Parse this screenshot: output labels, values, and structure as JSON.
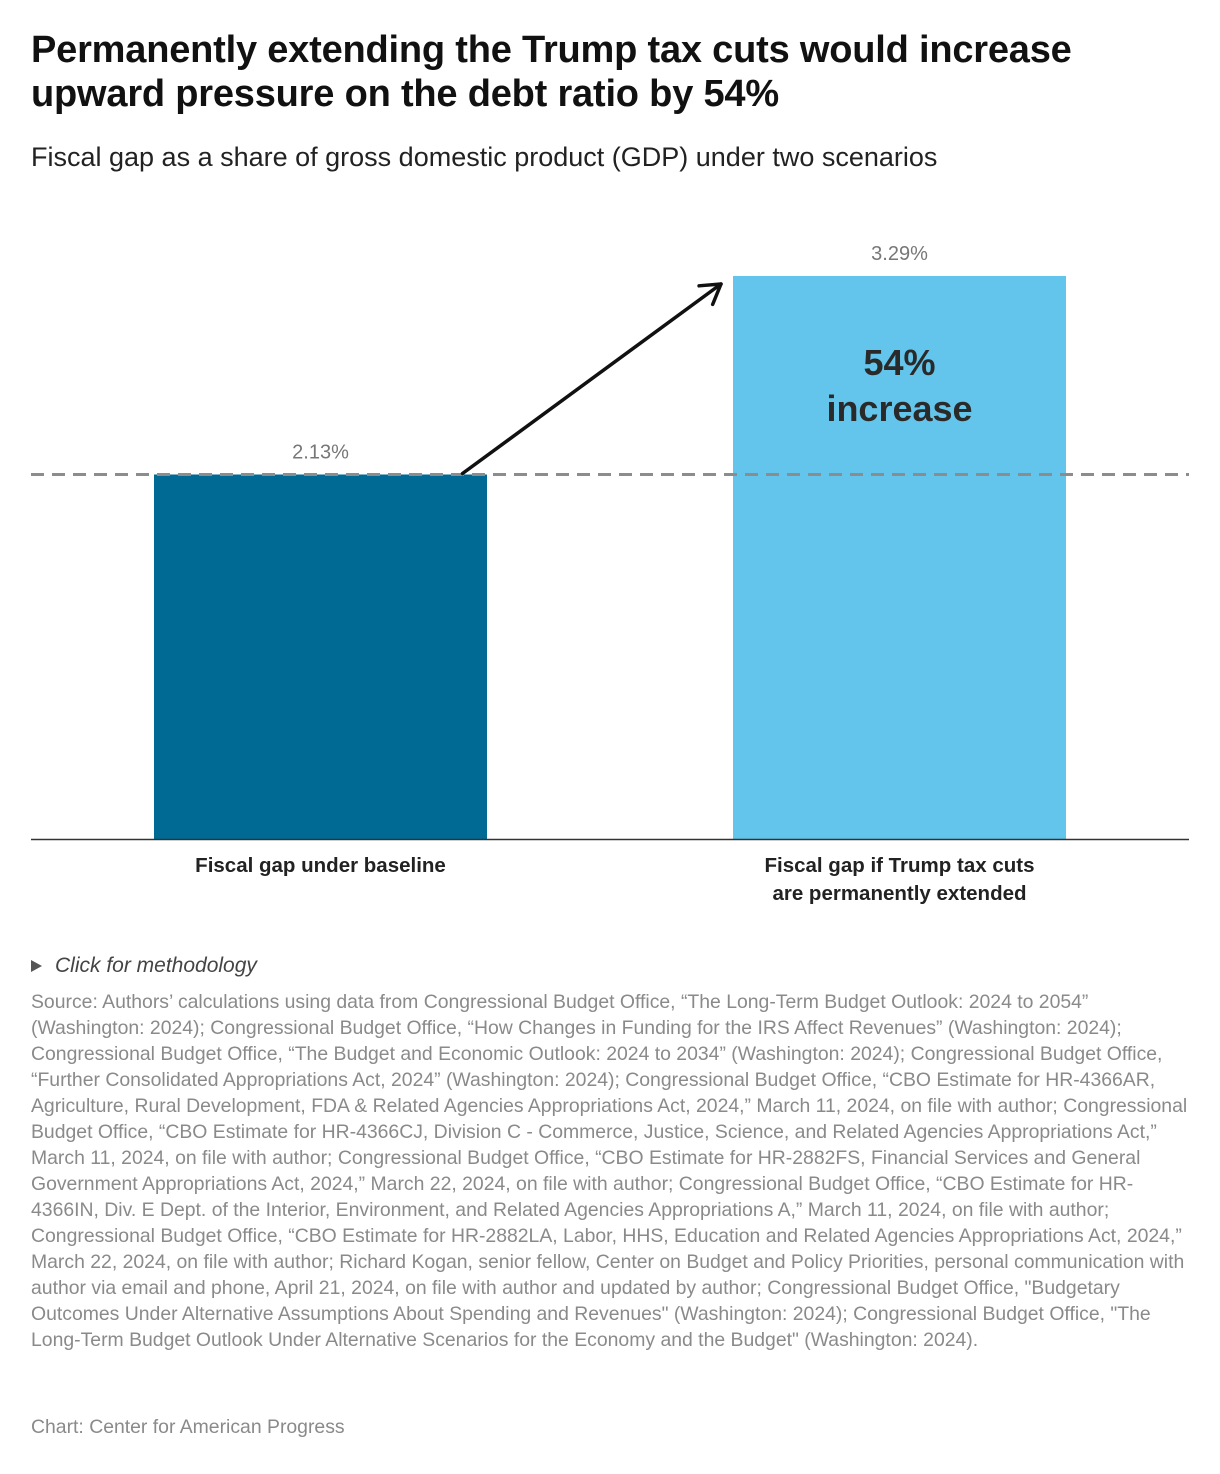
{
  "header": {
    "title": "Permanently extending the Trump tax cuts would increase upward pressure on the debt ratio by 54%",
    "subtitle": "Fiscal gap as a share of gross domestic product (GDP) under two scenarios"
  },
  "chart_data": {
    "type": "bar",
    "title": "Permanently extending the Trump tax cuts would increase upward pressure on the debt ratio by 54%",
    "subtitle": "Fiscal gap as a share of gross domestic product (GDP) under two scenarios",
    "categories": [
      "Fiscal gap under baseline",
      "Fiscal gap if Trump tax cuts are permanently extended"
    ],
    "category_label_lines": [
      [
        "Fiscal gap under baseline"
      ],
      [
        "Fiscal gap if Trump tax cuts",
        "are permanently extended"
      ]
    ],
    "values": [
      2.13,
      3.29
    ],
    "value_labels": [
      "2.13%",
      "3.29%"
    ],
    "unit": "%",
    "ylim": [
      0,
      3.29
    ],
    "grid": false,
    "xlabel": "",
    "ylabel": "",
    "colors": [
      "#006a94",
      "#63c5eb"
    ],
    "reference_line": {
      "value": 2.13,
      "style": "dashed",
      "color": "#8c8c8c"
    },
    "annotation": {
      "lines": [
        "54%",
        "increase"
      ],
      "placement": "inside second bar",
      "arrow": "from top of first bar to second bar"
    }
  },
  "footer": {
    "methodology_label": "Click for methodology",
    "source": "Source: Authors’ calculations using data from Congressional Budget Office, “The Long-Term Budget Outlook: 2024 to 2054” (Washington: 2024); Congressional Budget Office, “How Changes in Funding for the IRS Affect Revenues” (Washington: 2024); Congressional Budget Office, “The Budget and Economic Outlook: 2024 to 2034” (Washington: 2024); Congressional Budget Office, “Further Consolidated Appropriations Act, 2024” (Washington: 2024); Congressional Budget Office, “CBO Estimate for HR-4366AR, Agriculture, Rural Development, FDA & Related Agencies Appropriations Act, 2024,” March 11, 2024, on file with author; Congressional Budget Office, “CBO Estimate for HR-4366CJ, Division C - Commerce, Justice, Science, and Related Agencies Appropriations Act,” March 11, 2024, on file with author; Congressional Budget Office, “CBO Estimate for HR-2882FS, Financial Services and General Government Appropriations Act, 2024,” March 22, 2024, on file with author; Congressional Budget Office, “CBO Estimate for HR-4366IN, Div. E Dept. of the Interior, Environment, and Related Agencies Appropriations A,” March 11, 2024, on file with author; Congressional Budget Office, “CBO Estimate for HR-2882LA, Labor, HHS, Education and Related Agencies Appropriations Act, 2024,” March 22, 2024, on file with author; Richard Kogan, senior fellow, Center on Budget and Policy Priorities, personal communication with author via email and phone, April 21, 2024, on file with author and updated by author; Congressional Budget Office, \"Budgetary Outcomes Under Alternative Assumptions About Spending and Revenues\" (Washington: 2024); Congressional Budget Office, \"The Long-Term Budget Outlook Under Alternative Scenarios for the Economy and the Budget\" (Washington: 2024).",
    "credit": "Chart: Center for American Progress"
  }
}
